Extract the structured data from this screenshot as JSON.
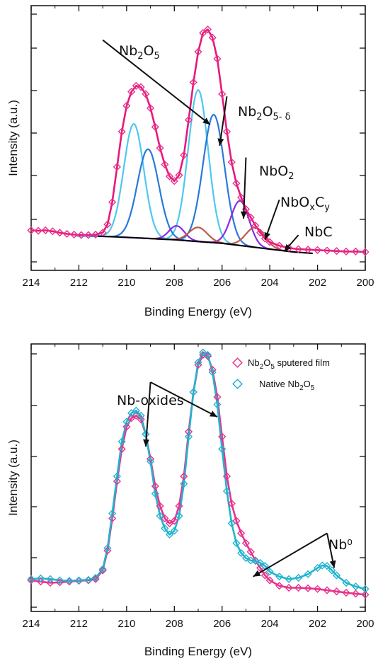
{
  "chart_data": [
    {
      "type": "line",
      "xlabel": "Binding Energy (eV)",
      "ylabel": "Intensity (a.u.)",
      "xlim": [
        214,
        200
      ],
      "x_reversed": true,
      "ylim": [
        0,
        1.0
      ],
      "x_ticks": [
        214,
        212,
        210,
        208,
        206,
        204,
        202,
        200
      ],
      "y_ticks_shown": false,
      "grid": false,
      "colors": {
        "data": "#e8328c",
        "envelope": "#e6197a",
        "nb2o5": "#4ec8f0",
        "nb2o5_delta": "#2a78d8",
        "nbo2": "#8a2be2",
        "nboxcy": "#b85c4a",
        "background": "#000000"
      },
      "background_curve": [
        [
          211.2,
          0.085
        ],
        [
          210,
          0.08
        ],
        [
          208,
          0.07
        ],
        [
          206,
          0.055
        ],
        [
          204,
          0.03
        ],
        [
          203,
          0.018
        ],
        [
          202.2,
          0.012
        ]
      ],
      "data_points": [
        [
          214.0,
          0.11
        ],
        [
          213.7,
          0.108
        ],
        [
          213.4,
          0.11
        ],
        [
          213.1,
          0.106
        ],
        [
          212.8,
          0.1
        ],
        [
          212.5,
          0.095
        ],
        [
          212.2,
          0.092
        ],
        [
          211.9,
          0.09
        ],
        [
          211.6,
          0.09
        ],
        [
          211.3,
          0.092
        ],
        [
          211.0,
          0.1
        ],
        [
          210.8,
          0.135
        ],
        [
          210.6,
          0.23
        ],
        [
          210.4,
          0.38
        ],
        [
          210.2,
          0.53
        ],
        [
          210.0,
          0.64
        ],
        [
          209.8,
          0.7
        ],
        [
          209.6,
          0.725
        ],
        [
          209.4,
          0.72
        ],
        [
          209.2,
          0.69
        ],
        [
          209.0,
          0.63
        ],
        [
          208.8,
          0.55
        ],
        [
          208.6,
          0.46
        ],
        [
          208.4,
          0.39
        ],
        [
          208.2,
          0.34
        ],
        [
          208.0,
          0.32
        ],
        [
          207.8,
          0.345
        ],
        [
          207.6,
          0.43
        ],
        [
          207.4,
          0.58
        ],
        [
          207.2,
          0.74
        ],
        [
          207.0,
          0.87
        ],
        [
          206.8,
          0.95
        ],
        [
          206.6,
          0.965
        ],
        [
          206.4,
          0.93
        ],
        [
          206.2,
          0.84
        ],
        [
          206.0,
          0.69
        ],
        [
          205.8,
          0.53
        ],
        [
          205.6,
          0.4
        ],
        [
          205.4,
          0.31
        ],
        [
          205.2,
          0.25
        ],
        [
          205.0,
          0.2
        ],
        [
          204.8,
          0.165
        ],
        [
          204.6,
          0.13
        ],
        [
          204.4,
          0.1
        ],
        [
          204.2,
          0.075
        ],
        [
          204.0,
          0.06
        ],
        [
          203.6,
          0.045
        ],
        [
          203.2,
          0.035
        ],
        [
          202.8,
          0.03
        ],
        [
          202.4,
          0.028
        ],
        [
          202.0,
          0.026
        ],
        [
          201.6,
          0.024
        ],
        [
          201.2,
          0.022
        ],
        [
          200.8,
          0.02
        ],
        [
          200.4,
          0.02
        ],
        [
          200.0,
          0.018
        ]
      ],
      "components": [
        {
          "key": "nb2o5",
          "peaks": [
            {
              "center": 209.7,
              "amp": 0.485,
              "sigma": 0.42
            },
            {
              "center": 207.0,
              "amp": 0.645,
              "sigma": 0.42
            }
          ]
        },
        {
          "key": "nb2o5_delta",
          "peaks": [
            {
              "center": 209.1,
              "amp": 0.38,
              "sigma": 0.45
            },
            {
              "center": 206.35,
              "amp": 0.545,
              "sigma": 0.45
            }
          ]
        },
        {
          "key": "nbo2",
          "peaks": [
            {
              "center": 207.9,
              "amp": 0.06,
              "sigma": 0.32
            },
            {
              "center": 205.25,
              "amp": 0.19,
              "sigma": 0.38
            }
          ]
        },
        {
          "key": "nboxcy",
          "peaks": [
            {
              "center": 207.0,
              "amp": 0.06,
              "sigma": 0.38
            },
            {
              "center": 204.6,
              "amp": 0.085,
              "sigma": 0.4
            }
          ]
        }
      ],
      "annotations": [
        {
          "key": "nb2o5_label",
          "from": [
            211.0,
            0.92
          ],
          "to": [
            206.5,
            0.56
          ]
        },
        {
          "key": "nb2o5_delta_label",
          "from": [
            205.8,
            0.68
          ],
          "to": [
            206.1,
            0.47
          ]
        },
        {
          "key": "nbo2_label",
          "from": [
            205.0,
            0.42
          ],
          "to": [
            205.1,
            0.16
          ]
        },
        {
          "key": "nboxcy_label",
          "from": [
            203.6,
            0.24
          ],
          "to": [
            204.2,
            0.07
          ]
        },
        {
          "key": "nbc_label",
          "from": [
            202.8,
            0.09
          ],
          "to": [
            203.4,
            0.02
          ]
        }
      ]
    },
    {
      "type": "line",
      "xlabel": "Binding Energy (eV)",
      "ylabel": "Intensity (a.u.)",
      "xlim": [
        214,
        200
      ],
      "x_reversed": true,
      "ylim": [
        0,
        1.0
      ],
      "x_ticks": [
        214,
        212,
        210,
        208,
        206,
        204,
        202,
        200
      ],
      "y_ticks_shown": false,
      "grid": false,
      "legend_position": "top-right",
      "series": [
        {
          "key": "sputtered",
          "color": "#e8328c",
          "points": [
            [
              214.0,
              0.08
            ],
            [
              213.6,
              0.075
            ],
            [
              213.2,
              0.07
            ],
            [
              212.8,
              0.072
            ],
            [
              212.4,
              0.075
            ],
            [
              212.0,
              0.078
            ],
            [
              211.6,
              0.08
            ],
            [
              211.3,
              0.085
            ],
            [
              211.0,
              0.12
            ],
            [
              210.8,
              0.2
            ],
            [
              210.6,
              0.33
            ],
            [
              210.4,
              0.48
            ],
            [
              210.2,
              0.61
            ],
            [
              210.0,
              0.7
            ],
            [
              209.8,
              0.735
            ],
            [
              209.6,
              0.745
            ],
            [
              209.4,
              0.73
            ],
            [
              209.2,
              0.67
            ],
            [
              209.0,
              0.57
            ],
            [
              208.8,
              0.46
            ],
            [
              208.6,
              0.38
            ],
            [
              208.4,
              0.33
            ],
            [
              208.2,
              0.31
            ],
            [
              208.0,
              0.32
            ],
            [
              207.8,
              0.38
            ],
            [
              207.6,
              0.5
            ],
            [
              207.4,
              0.68
            ],
            [
              207.2,
              0.84
            ],
            [
              207.0,
              0.95
            ],
            [
              206.8,
              0.99
            ],
            [
              206.6,
              0.985
            ],
            [
              206.4,
              0.93
            ],
            [
              206.2,
              0.82
            ],
            [
              206.0,
              0.66
            ],
            [
              205.8,
              0.5
            ],
            [
              205.6,
              0.39
            ],
            [
              205.4,
              0.32
            ],
            [
              205.2,
              0.27
            ],
            [
              205.0,
              0.23
            ],
            [
              204.8,
              0.195
            ],
            [
              204.6,
              0.16
            ],
            [
              204.4,
              0.13
            ],
            [
              204.2,
              0.1
            ],
            [
              204.0,
              0.08
            ],
            [
              203.6,
              0.058
            ],
            [
              203.2,
              0.05
            ],
            [
              202.8,
              0.05
            ],
            [
              202.4,
              0.048
            ],
            [
              202.0,
              0.045
            ],
            [
              201.6,
              0.04
            ],
            [
              201.2,
              0.035
            ],
            [
              200.8,
              0.03
            ],
            [
              200.4,
              0.026
            ],
            [
              200.0,
              0.022
            ]
          ]
        },
        {
          "key": "native",
          "color": "#22b4cf",
          "points": [
            [
              214.0,
              0.085
            ],
            [
              213.6,
              0.088
            ],
            [
              213.2,
              0.085
            ],
            [
              212.8,
              0.08
            ],
            [
              212.4,
              0.078
            ],
            [
              212.0,
              0.08
            ],
            [
              211.6,
              0.082
            ],
            [
              211.3,
              0.09
            ],
            [
              211.0,
              0.125
            ],
            [
              210.8,
              0.21
            ],
            [
              210.6,
              0.35
            ],
            [
              210.4,
              0.5
            ],
            [
              210.2,
              0.64
            ],
            [
              210.0,
              0.72
            ],
            [
              209.8,
              0.755
            ],
            [
              209.6,
              0.765
            ],
            [
              209.4,
              0.745
            ],
            [
              209.2,
              0.67
            ],
            [
              209.0,
              0.56
            ],
            [
              208.8,
              0.43
            ],
            [
              208.6,
              0.34
            ],
            [
              208.4,
              0.29
            ],
            [
              208.2,
              0.265
            ],
            [
              208.0,
              0.28
            ],
            [
              207.8,
              0.34
            ],
            [
              207.6,
              0.47
            ],
            [
              207.4,
              0.66
            ],
            [
              207.2,
              0.84
            ],
            [
              207.0,
              0.96
            ],
            [
              206.8,
              1.0
            ],
            [
              206.6,
              0.99
            ],
            [
              206.4,
              0.92
            ],
            [
              206.2,
              0.79
            ],
            [
              206.0,
              0.61
            ],
            [
              205.8,
              0.44
            ],
            [
              205.6,
              0.31
            ],
            [
              205.4,
              0.23
            ],
            [
              205.2,
              0.19
            ],
            [
              205.0,
              0.17
            ],
            [
              204.8,
              0.16
            ],
            [
              204.6,
              0.158
            ],
            [
              204.4,
              0.15
            ],
            [
              204.2,
              0.138
            ],
            [
              204.0,
              0.115
            ],
            [
              203.6,
              0.095
            ],
            [
              203.2,
              0.085
            ],
            [
              202.8,
              0.09
            ],
            [
              202.4,
              0.105
            ],
            [
              202.0,
              0.13
            ],
            [
              201.8,
              0.14
            ],
            [
              201.6,
              0.138
            ],
            [
              201.4,
              0.12
            ],
            [
              201.2,
              0.1
            ],
            [
              200.8,
              0.07
            ],
            [
              200.4,
              0.055
            ],
            [
              200.0,
              0.045
            ]
          ]
        }
      ],
      "annotations": [
        {
          "key": "nb_oxides_label",
          "from": [
            209.0,
            0.88
          ],
          "to": [
            209.2,
            0.62
          ]
        },
        {
          "key": "nb_oxides_label",
          "from": [
            209.0,
            0.88
          ],
          "to": [
            206.2,
            0.74
          ]
        },
        {
          "key": "nb0_label",
          "from": [
            201.6,
            0.27
          ],
          "to": [
            204.7,
            0.095
          ]
        },
        {
          "key": "nb0_label",
          "from": [
            201.6,
            0.27
          ],
          "to": [
            201.3,
            0.13
          ]
        }
      ]
    }
  ],
  "labels": {
    "nb2o5": {
      "base": "Nb",
      "sub1": "2",
      "mid": "O",
      "sub2": "5"
    },
    "nb2o5_delta": {
      "base": "Nb",
      "sub1": "2",
      "mid": "O",
      "sub2": "5- δ"
    },
    "nbo2": {
      "base": "NbO",
      "sub1": "2"
    },
    "nboxcy": {
      "base": "NbO",
      "sub1": "x",
      "mid": "C",
      "sub2": "y"
    },
    "nbc": "NbC",
    "nb_oxides": "Nb-oxides",
    "nb0": "Nb⁰",
    "legend_sputtered": {
      "base": "Nb",
      "sub1": "2",
      "mid": "O",
      "sub2": "5",
      "tail": " sputered film"
    },
    "legend_native": {
      "base": "Native Nb",
      "sub1": "2",
      "mid": "O",
      "sub2": "5"
    }
  }
}
